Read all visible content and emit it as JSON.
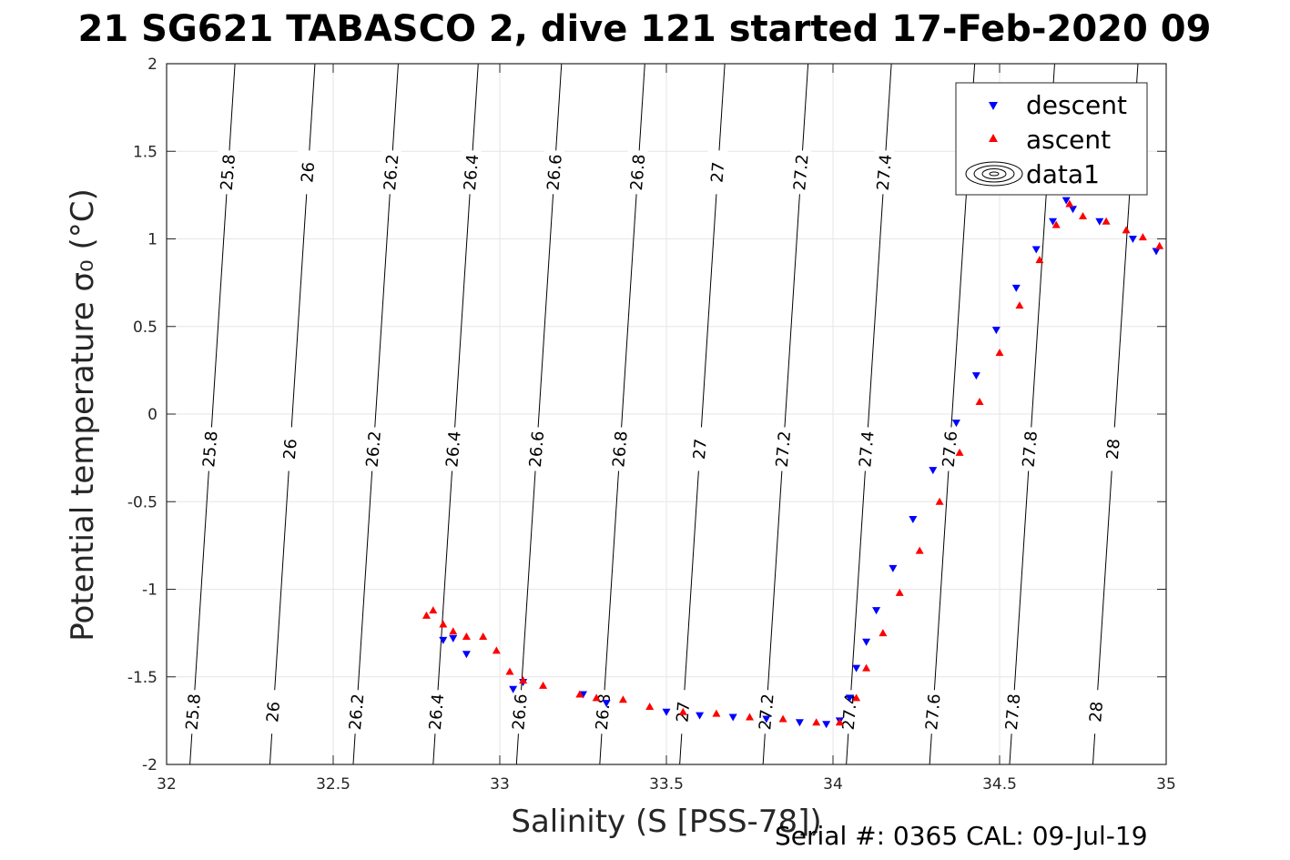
{
  "chart_data": {
    "type": "scatter",
    "title": "21 SG621 TABASCO 2, dive 121 started 17-Feb-2020 09",
    "xlabel": "Salinity (S [PSS-78])",
    "ylabel": "Potential temperature σ₀ (°C)",
    "xlim": [
      32,
      35
    ],
    "ylim": [
      -2,
      2
    ],
    "xticks": [
      "32",
      "32.5",
      "33",
      "33.5",
      "34",
      "34.5",
      "35"
    ],
    "yticks": [
      "-2",
      "-1.5",
      "-1",
      "-0.5",
      "0",
      "0.5",
      "1",
      "1.5",
      "2"
    ],
    "grid": true,
    "legend_position": "top-right",
    "legend": [
      "descent",
      "ascent",
      "data1"
    ],
    "footer": "Serial #: 0365  CAL: 09-Jul-19",
    "colors": {
      "descent": "#0000ff",
      "ascent": "#ff0000",
      "contour": "#000000",
      "grid": "#e6e6e6"
    },
    "density_contours": {
      "levels": [
        "25.8",
        "26",
        "26.2",
        "26.4",
        "26.6",
        "26.8",
        "27",
        "27.2",
        "27.4",
        "27.6",
        "27.8",
        "28"
      ],
      "bottom_salinity": [
        32.07,
        32.31,
        32.56,
        32.8,
        33.05,
        33.3,
        33.54,
        33.79,
        34.04,
        34.29,
        34.53,
        34.78
      ],
      "slope_salinity_per_degC": 0.0338
    },
    "series": [
      {
        "name": "descent",
        "marker": "triangle-down",
        "x": [
          32.83,
          32.86,
          32.9,
          33.04,
          33.07,
          33.25,
          33.32,
          33.5,
          33.6,
          33.7,
          33.8,
          33.9,
          33.98,
          34.02,
          34.05,
          34.07,
          34.1,
          34.13,
          34.18,
          34.24,
          34.3,
          34.37,
          34.43,
          34.49,
          34.55,
          34.61,
          34.66,
          34.7,
          34.72,
          34.8,
          34.9,
          34.97
        ],
        "y": [
          -1.29,
          -1.28,
          -1.37,
          -1.57,
          -1.53,
          -1.6,
          -1.65,
          -1.7,
          -1.72,
          -1.73,
          -1.74,
          -1.76,
          -1.77,
          -1.75,
          -1.62,
          -1.45,
          -1.3,
          -1.12,
          -0.88,
          -0.6,
          -0.32,
          -0.05,
          0.22,
          0.48,
          0.72,
          0.94,
          1.1,
          1.22,
          1.17,
          1.1,
          1.0,
          0.93
        ]
      },
      {
        "name": "ascent",
        "marker": "triangle-up",
        "x": [
          32.78,
          32.8,
          32.83,
          32.86,
          32.9,
          32.95,
          32.99,
          33.03,
          33.07,
          33.13,
          33.24,
          33.29,
          33.37,
          33.45,
          33.55,
          33.65,
          33.75,
          33.85,
          33.95,
          34.02,
          34.07,
          34.1,
          34.15,
          34.2,
          34.26,
          34.32,
          34.38,
          34.44,
          34.5,
          34.56,
          34.62,
          34.67,
          34.71,
          34.75,
          34.82,
          34.88,
          34.93,
          34.98
        ],
        "y": [
          -1.15,
          -1.12,
          -1.2,
          -1.24,
          -1.27,
          -1.27,
          -1.35,
          -1.47,
          -1.52,
          -1.55,
          -1.6,
          -1.62,
          -1.63,
          -1.67,
          -1.7,
          -1.71,
          -1.73,
          -1.74,
          -1.76,
          -1.76,
          -1.62,
          -1.45,
          -1.25,
          -1.02,
          -0.78,
          -0.5,
          -0.22,
          0.07,
          0.35,
          0.62,
          0.88,
          1.08,
          1.2,
          1.13,
          1.1,
          1.05,
          1.01,
          0.96
        ]
      }
    ]
  }
}
